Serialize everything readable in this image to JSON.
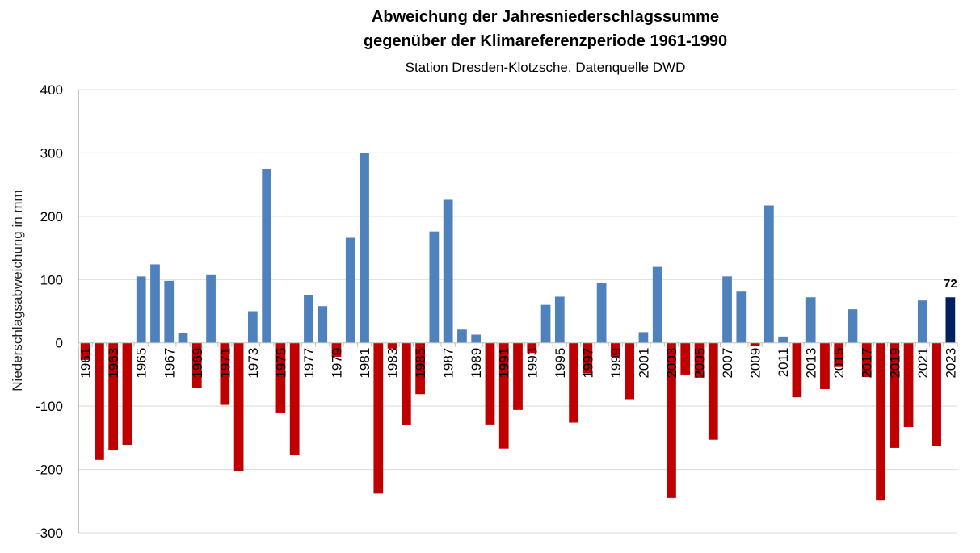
{
  "chart_data": {
    "type": "bar",
    "title": "Abweichung der Jahresniederschlagssumme",
    "title_line2": "gegenüber der Klimareferenzperiode 1961-1990",
    "subtitle": "Station Dresden-Klotzsche, Datenquelle DWD",
    "xlabel": "",
    "ylabel": "Niederschlagsabweichung in mm",
    "ylim": [
      -300,
      400
    ],
    "yticks": [
      -300,
      -200,
      -100,
      0,
      100,
      200,
      300,
      400
    ],
    "grid": true,
    "categories": [
      1961,
      1962,
      1963,
      1964,
      1965,
      1966,
      1967,
      1968,
      1969,
      1970,
      1971,
      1972,
      1973,
      1974,
      1975,
      1976,
      1977,
      1978,
      1979,
      1980,
      1981,
      1982,
      1983,
      1984,
      1985,
      1986,
      1987,
      1988,
      1989,
      1990,
      1991,
      1992,
      1993,
      1994,
      1995,
      1996,
      1997,
      1998,
      1999,
      2000,
      2001,
      2002,
      2003,
      2004,
      2005,
      2006,
      2007,
      2008,
      2009,
      2010,
      2011,
      2012,
      2013,
      2014,
      2015,
      2016,
      2017,
      2018,
      2019,
      2020,
      2021,
      2022,
      2023
    ],
    "values": [
      -27,
      -185,
      -170,
      -161,
      105,
      124,
      98,
      15,
      -71,
      107,
      -98,
      -203,
      50,
      275,
      -110,
      -177,
      75,
      58,
      -22,
      166,
      300,
      -238,
      -9,
      -130,
      -81,
      176,
      226,
      21,
      13,
      -129,
      -167,
      -106,
      -16,
      60,
      73,
      -126,
      -48,
      95,
      -22,
      -89,
      17,
      120,
      -245,
      -50,
      -55,
      -153,
      105,
      81,
      -5,
      217,
      10,
      -86,
      72,
      -73,
      -37,
      53,
      -54,
      -248,
      -166,
      -133,
      67,
      -163,
      72
    ],
    "highlight": {
      "category": 2023,
      "label": "72"
    },
    "colors": {
      "positive": "#4f81bd",
      "negative": "#c00000",
      "highlight": "#002060",
      "grid": "#d9d9d9"
    }
  }
}
